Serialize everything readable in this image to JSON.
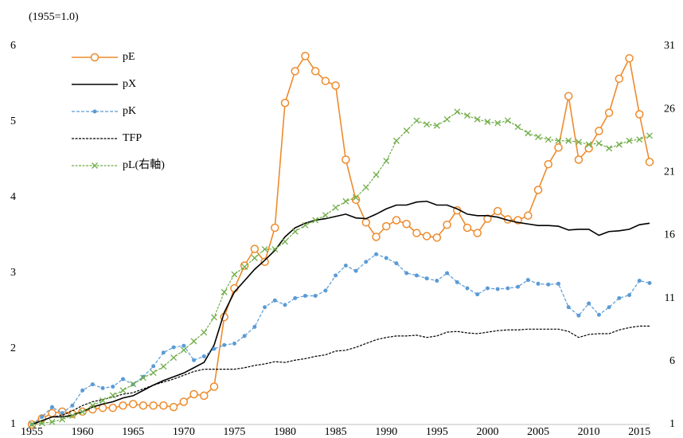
{
  "chart_data": {
    "type": "line",
    "title": "(1955=1.0)",
    "x": [
      1955,
      1956,
      1957,
      1958,
      1959,
      1960,
      1961,
      1962,
      1963,
      1964,
      1965,
      1966,
      1967,
      1968,
      1969,
      1970,
      1971,
      1972,
      1973,
      1974,
      1975,
      1976,
      1977,
      1978,
      1979,
      1980,
      1981,
      1982,
      1983,
      1984,
      1985,
      1986,
      1987,
      1988,
      1989,
      1990,
      1991,
      1992,
      1993,
      1994,
      1995,
      1996,
      1997,
      1998,
      1999,
      2000,
      2001,
      2002,
      2003,
      2004,
      2005,
      2006,
      2007,
      2008,
      2009,
      2010,
      2011,
      2012,
      2013,
      2014,
      2015,
      2016
    ],
    "xlim": [
      1955,
      2016
    ],
    "xticks": [
      1955,
      1960,
      1965,
      1970,
      1975,
      1980,
      1985,
      1990,
      1995,
      2000,
      2005,
      2010,
      2015
    ],
    "ylim": [
      1,
      6
    ],
    "yticks": [
      1,
      2,
      3,
      4,
      5,
      6
    ],
    "y2lim": [
      1,
      31
    ],
    "y2ticks": [
      1,
      6,
      11,
      16,
      21,
      26,
      31
    ],
    "grid": false,
    "legend": "upper-left",
    "series": [
      {
        "name": "pE",
        "color": "#ed8b2c",
        "marker": "circle",
        "dash": "solid",
        "values": [
          1.0,
          1.08,
          1.15,
          1.17,
          1.14,
          1.17,
          1.2,
          1.22,
          1.22,
          1.25,
          1.27,
          1.25,
          1.25,
          1.25,
          1.23,
          1.3,
          1.4,
          1.38,
          1.5,
          2.42,
          2.8,
          3.1,
          3.32,
          3.15,
          3.6,
          5.25,
          5.67,
          5.87,
          5.67,
          5.54,
          5.48,
          4.5,
          3.97,
          3.67,
          3.48,
          3.62,
          3.7,
          3.65,
          3.53,
          3.49,
          3.47,
          3.64,
          3.83,
          3.6,
          3.53,
          3.72,
          3.82,
          3.71,
          3.7,
          3.76,
          4.1,
          4.44,
          4.66,
          5.34,
          4.5,
          4.65,
          4.88,
          5.12,
          5.57,
          5.84,
          5.1,
          4.47
        ]
      },
      {
        "name": "pX",
        "color": "#000000",
        "marker": "none",
        "dash": "solid",
        "values": [
          1.0,
          1.05,
          1.1,
          1.1,
          1.12,
          1.17,
          1.23,
          1.27,
          1.3,
          1.35,
          1.38,
          1.45,
          1.52,
          1.58,
          1.63,
          1.68,
          1.75,
          1.82,
          2.05,
          2.48,
          2.75,
          2.9,
          3.05,
          3.17,
          3.3,
          3.48,
          3.6,
          3.66,
          3.7,
          3.72,
          3.75,
          3.78,
          3.73,
          3.72,
          3.78,
          3.85,
          3.9,
          3.9,
          3.94,
          3.95,
          3.9,
          3.9,
          3.85,
          3.78,
          3.76,
          3.76,
          3.74,
          3.7,
          3.67,
          3.65,
          3.63,
          3.63,
          3.62,
          3.57,
          3.58,
          3.58,
          3.5,
          3.55,
          3.56,
          3.58,
          3.64,
          3.66
        ]
      },
      {
        "name": "pK",
        "color": "#5b9bd5",
        "marker": "dot",
        "dash": "dashed",
        "values": [
          1.0,
          1.1,
          1.23,
          1.15,
          1.25,
          1.45,
          1.53,
          1.48,
          1.5,
          1.6,
          1.53,
          1.63,
          1.77,
          1.95,
          2.02,
          2.04,
          1.85,
          1.9,
          2.0,
          2.05,
          2.07,
          2.17,
          2.29,
          2.55,
          2.64,
          2.58,
          2.67,
          2.7,
          2.7,
          2.77,
          2.97,
          3.1,
          3.03,
          3.15,
          3.25,
          3.2,
          3.13,
          3.0,
          2.97,
          2.93,
          2.9,
          3.0,
          2.88,
          2.8,
          2.72,
          2.8,
          2.79,
          2.8,
          2.82,
          2.91,
          2.86,
          2.85,
          2.86,
          2.55,
          2.44,
          2.6,
          2.45,
          2.55,
          2.67,
          2.71,
          2.9,
          2.87
        ]
      },
      {
        "name": "TFP",
        "color": "#000000",
        "marker": "none",
        "dash": "dotted",
        "values": [
          1.0,
          1.05,
          1.1,
          1.12,
          1.18,
          1.25,
          1.3,
          1.33,
          1.36,
          1.4,
          1.42,
          1.47,
          1.52,
          1.56,
          1.6,
          1.65,
          1.7,
          1.73,
          1.73,
          1.73,
          1.73,
          1.75,
          1.78,
          1.8,
          1.83,
          1.82,
          1.85,
          1.87,
          1.9,
          1.92,
          1.97,
          1.98,
          2.02,
          2.07,
          2.12,
          2.15,
          2.17,
          2.17,
          2.18,
          2.15,
          2.17,
          2.22,
          2.23,
          2.21,
          2.2,
          2.22,
          2.24,
          2.25,
          2.25,
          2.26,
          2.26,
          2.26,
          2.26,
          2.23,
          2.15,
          2.19,
          2.2,
          2.2,
          2.25,
          2.28,
          2.3,
          2.3
        ]
      },
      {
        "name": "pL(右軸)",
        "color": "#70ad47",
        "marker": "x",
        "dash": "dotted",
        "axis": "y2",
        "values": [
          1,
          1.1,
          1.2,
          1.4,
          1.7,
          2.0,
          2.5,
          2.9,
          3.3,
          3.7,
          4.2,
          4.7,
          5.1,
          5.6,
          6.3,
          6.9,
          7.6,
          8.3,
          9.5,
          11.5,
          12.9,
          13.5,
          14.2,
          14.9,
          14.9,
          15.5,
          16.3,
          16.8,
          17.2,
          17.6,
          18.2,
          18.7,
          19.0,
          19.8,
          20.8,
          21.9,
          23.5,
          24.3,
          25.1,
          24.8,
          24.7,
          25.2,
          25.8,
          25.5,
          25.2,
          25.0,
          24.9,
          25.1,
          24.6,
          24.1,
          23.8,
          23.6,
          23.5,
          23.5,
          23.4,
          23.2,
          23.3,
          22.9,
          23.2,
          23.5,
          23.6,
          23.9
        ]
      }
    ]
  }
}
